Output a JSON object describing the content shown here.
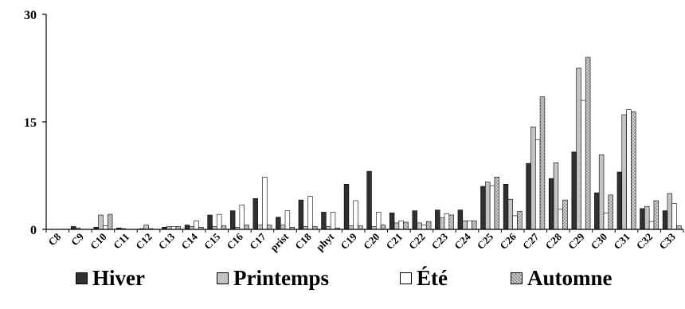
{
  "chart_data": {
    "type": "bar",
    "title": "",
    "xlabel": "",
    "ylabel": "",
    "ylim": [
      0,
      30
    ],
    "yticks": [
      "0",
      "15",
      "30"
    ],
    "grid": false,
    "legend_position": "bottom",
    "categories": [
      "C8",
      "C9",
      "C10",
      "C11",
      "C12",
      "C13",
      "C14",
      "C15",
      "C16",
      "C17",
      "prist",
      "C18",
      "phyt",
      "C19",
      "C20",
      "C21",
      "C22",
      "C23",
      "C24",
      "C25",
      "C26",
      "C27",
      "C28",
      "C29",
      "C30",
      "C31",
      "C32",
      "C33"
    ],
    "series": [
      {
        "name": "Hiver",
        "color": "#303030",
        "values": [
          0,
          0.4,
          0.3,
          0.2,
          0.1,
          0.3,
          0.6,
          2.0,
          2.6,
          4.3,
          1.7,
          4.1,
          2.4,
          6.3,
          8.1,
          2.3,
          2.6,
          2.7,
          2.7,
          6.0,
          6.3,
          9.2,
          7.1,
          10.8,
          5.1,
          8.0,
          2.9,
          2.6
        ]
      },
      {
        "name": "Printemps",
        "color": "#c4c4c4",
        "values": [
          0,
          0.2,
          2.0,
          0.1,
          0.6,
          0.4,
          0.4,
          0.4,
          0.3,
          0.6,
          0.6,
          0.4,
          0.4,
          0.5,
          0.4,
          0.9,
          0.9,
          1.6,
          1.2,
          6.6,
          4.2,
          14.3,
          9.3,
          22.5,
          10.4,
          16.0,
          3.2,
          5.0
        ]
      },
      {
        "name": "Été",
        "color": "#ffffff",
        "values": [
          0,
          0,
          0.5,
          0,
          0.1,
          0.4,
          1.2,
          2.1,
          3.4,
          7.3,
          2.6,
          4.6,
          2.4,
          4.0,
          2.4,
          1.2,
          0.6,
          2.2,
          1.2,
          6.1,
          1.9,
          12.5,
          2.8,
          18.0,
          2.3,
          16.7,
          1.1,
          3.6
        ]
      },
      {
        "name": "Automne",
        "color": "#b4b4b4",
        "values": [
          0,
          0,
          2.1,
          0,
          0,
          0.4,
          0.3,
          0.5,
          0.6,
          0.6,
          0.3,
          0.4,
          0.2,
          0.5,
          0.6,
          1.0,
          1.1,
          2.0,
          1.2,
          7.3,
          2.5,
          18.5,
          4.1,
          24.0,
          4.8,
          16.4,
          4.0,
          0.5
        ]
      }
    ]
  }
}
